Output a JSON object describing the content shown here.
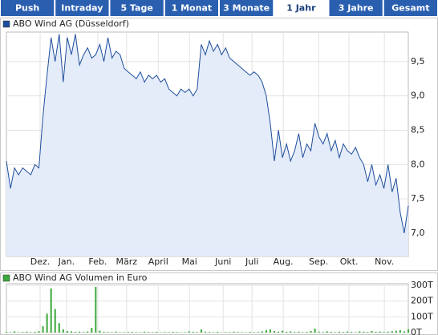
{
  "tabs": [
    "Push",
    "Intraday",
    "5 Tage",
    "1 Monat",
    "3 Monate",
    "1 Jahr",
    "3 Jahre",
    "Gesamt"
  ],
  "active_tab": 5,
  "chart_data": [
    {
      "type": "line",
      "title": "ABO Wind AG (Düsseldorf)",
      "color": "#1f4e9c",
      "fill": "#e4ecfa",
      "grid": true,
      "values": [
        8.05,
        7.65,
        7.95,
        7.85,
        7.95,
        7.9,
        7.85,
        8.0,
        7.95,
        8.7,
        9.3,
        9.85,
        9.5,
        9.9,
        9.2,
        9.85,
        9.6,
        9.9,
        9.45,
        9.6,
        9.7,
        9.55,
        9.6,
        9.75,
        9.5,
        9.85,
        9.55,
        9.65,
        9.6,
        9.4,
        9.35,
        9.3,
        9.25,
        9.35,
        9.2,
        9.3,
        9.25,
        9.3,
        9.2,
        9.25,
        9.1,
        9.05,
        9.0,
        9.1,
        9.05,
        9.1,
        9.0,
        9.1,
        9.75,
        9.6,
        9.8,
        9.65,
        9.75,
        9.6,
        9.7,
        9.55,
        9.5,
        9.45,
        9.4,
        9.35,
        9.3,
        9.35,
        9.3,
        9.2,
        9.0,
        8.6,
        8.05,
        8.5,
        8.1,
        8.3,
        8.05,
        8.2,
        8.45,
        8.1,
        8.3,
        8.2,
        8.6,
        8.4,
        8.3,
        8.45,
        8.2,
        8.35,
        8.1,
        8.3,
        8.2,
        8.15,
        8.25,
        8.1,
        8.0,
        7.75,
        8.0,
        7.7,
        7.85,
        7.65,
        8.0,
        7.6,
        7.8,
        7.3,
        7.0,
        7.4
      ],
      "xlim": [
        0,
        99
      ],
      "xticks": [
        {
          "value": 8.3,
          "label": "Dez."
        },
        {
          "value": 14.8,
          "label": "Jan."
        },
        {
          "value": 22.5,
          "label": "Feb."
        },
        {
          "value": 29.6,
          "label": "März"
        },
        {
          "value": 37.4,
          "label": "April"
        },
        {
          "value": 45.1,
          "label": "Mai"
        },
        {
          "value": 53.4,
          "label": "Juni"
        },
        {
          "value": 60.5,
          "label": "Juli"
        },
        {
          "value": 68.2,
          "label": "Aug."
        },
        {
          "value": 76.9,
          "label": "Sep."
        },
        {
          "value": 84.4,
          "label": "Okt."
        },
        {
          "value": 93.1,
          "label": "Nov."
        }
      ],
      "ylim": [
        6.66,
        9.93
      ],
      "yticks": [
        {
          "value": 7.0,
          "label": "7,0"
        },
        {
          "value": 7.5,
          "label": "7,5"
        },
        {
          "value": 8.0,
          "label": "8,0"
        },
        {
          "value": 8.5,
          "label": "8,5"
        },
        {
          "value": 9.0,
          "label": "9,0"
        },
        {
          "value": 9.5,
          "label": "9,5"
        }
      ]
    },
    {
      "type": "bar",
      "title": "ABO Wind AG Volumen in Euro",
      "color": "#3aa83a",
      "grid": true,
      "values": [
        5000,
        3000,
        8000,
        2000,
        4000,
        6000,
        3000,
        5000,
        9000,
        40000,
        120000,
        280000,
        150000,
        60000,
        20000,
        10000,
        8000,
        5000,
        6000,
        4000,
        7000,
        30000,
        290000,
        12000,
        5000,
        4000,
        3000,
        6000,
        2000,
        3000,
        4000,
        5000,
        3000,
        2000,
        6000,
        4000,
        3000,
        5000,
        2000,
        4000,
        3000,
        5000,
        4000,
        2000,
        3000,
        8000,
        5000,
        3000,
        20000,
        6000,
        4000,
        3000,
        5000,
        2000,
        4000,
        3000,
        6000,
        4000,
        3000,
        2000,
        5000,
        3000,
        4000,
        8000,
        15000,
        20000,
        10000,
        6000,
        12000,
        5000,
        8000,
        4000,
        6000,
        3000,
        5000,
        10000,
        25000,
        6000,
        4000,
        8000,
        5000,
        3000,
        6000,
        4000,
        7000,
        5000,
        3000,
        8000,
        6000,
        4000,
        10000,
        5000,
        7000,
        4000,
        6000,
        9000,
        12000,
        15000,
        8000,
        20000
      ],
      "xlim": [
        0,
        99
      ],
      "ylim": [
        0,
        300000
      ],
      "yticks": [
        {
          "value": 0,
          "label": "0T"
        },
        {
          "value": 100000,
          "label": "100T"
        },
        {
          "value": 200000,
          "label": "200T"
        },
        {
          "value": 300000,
          "label": "300T"
        }
      ]
    }
  ]
}
